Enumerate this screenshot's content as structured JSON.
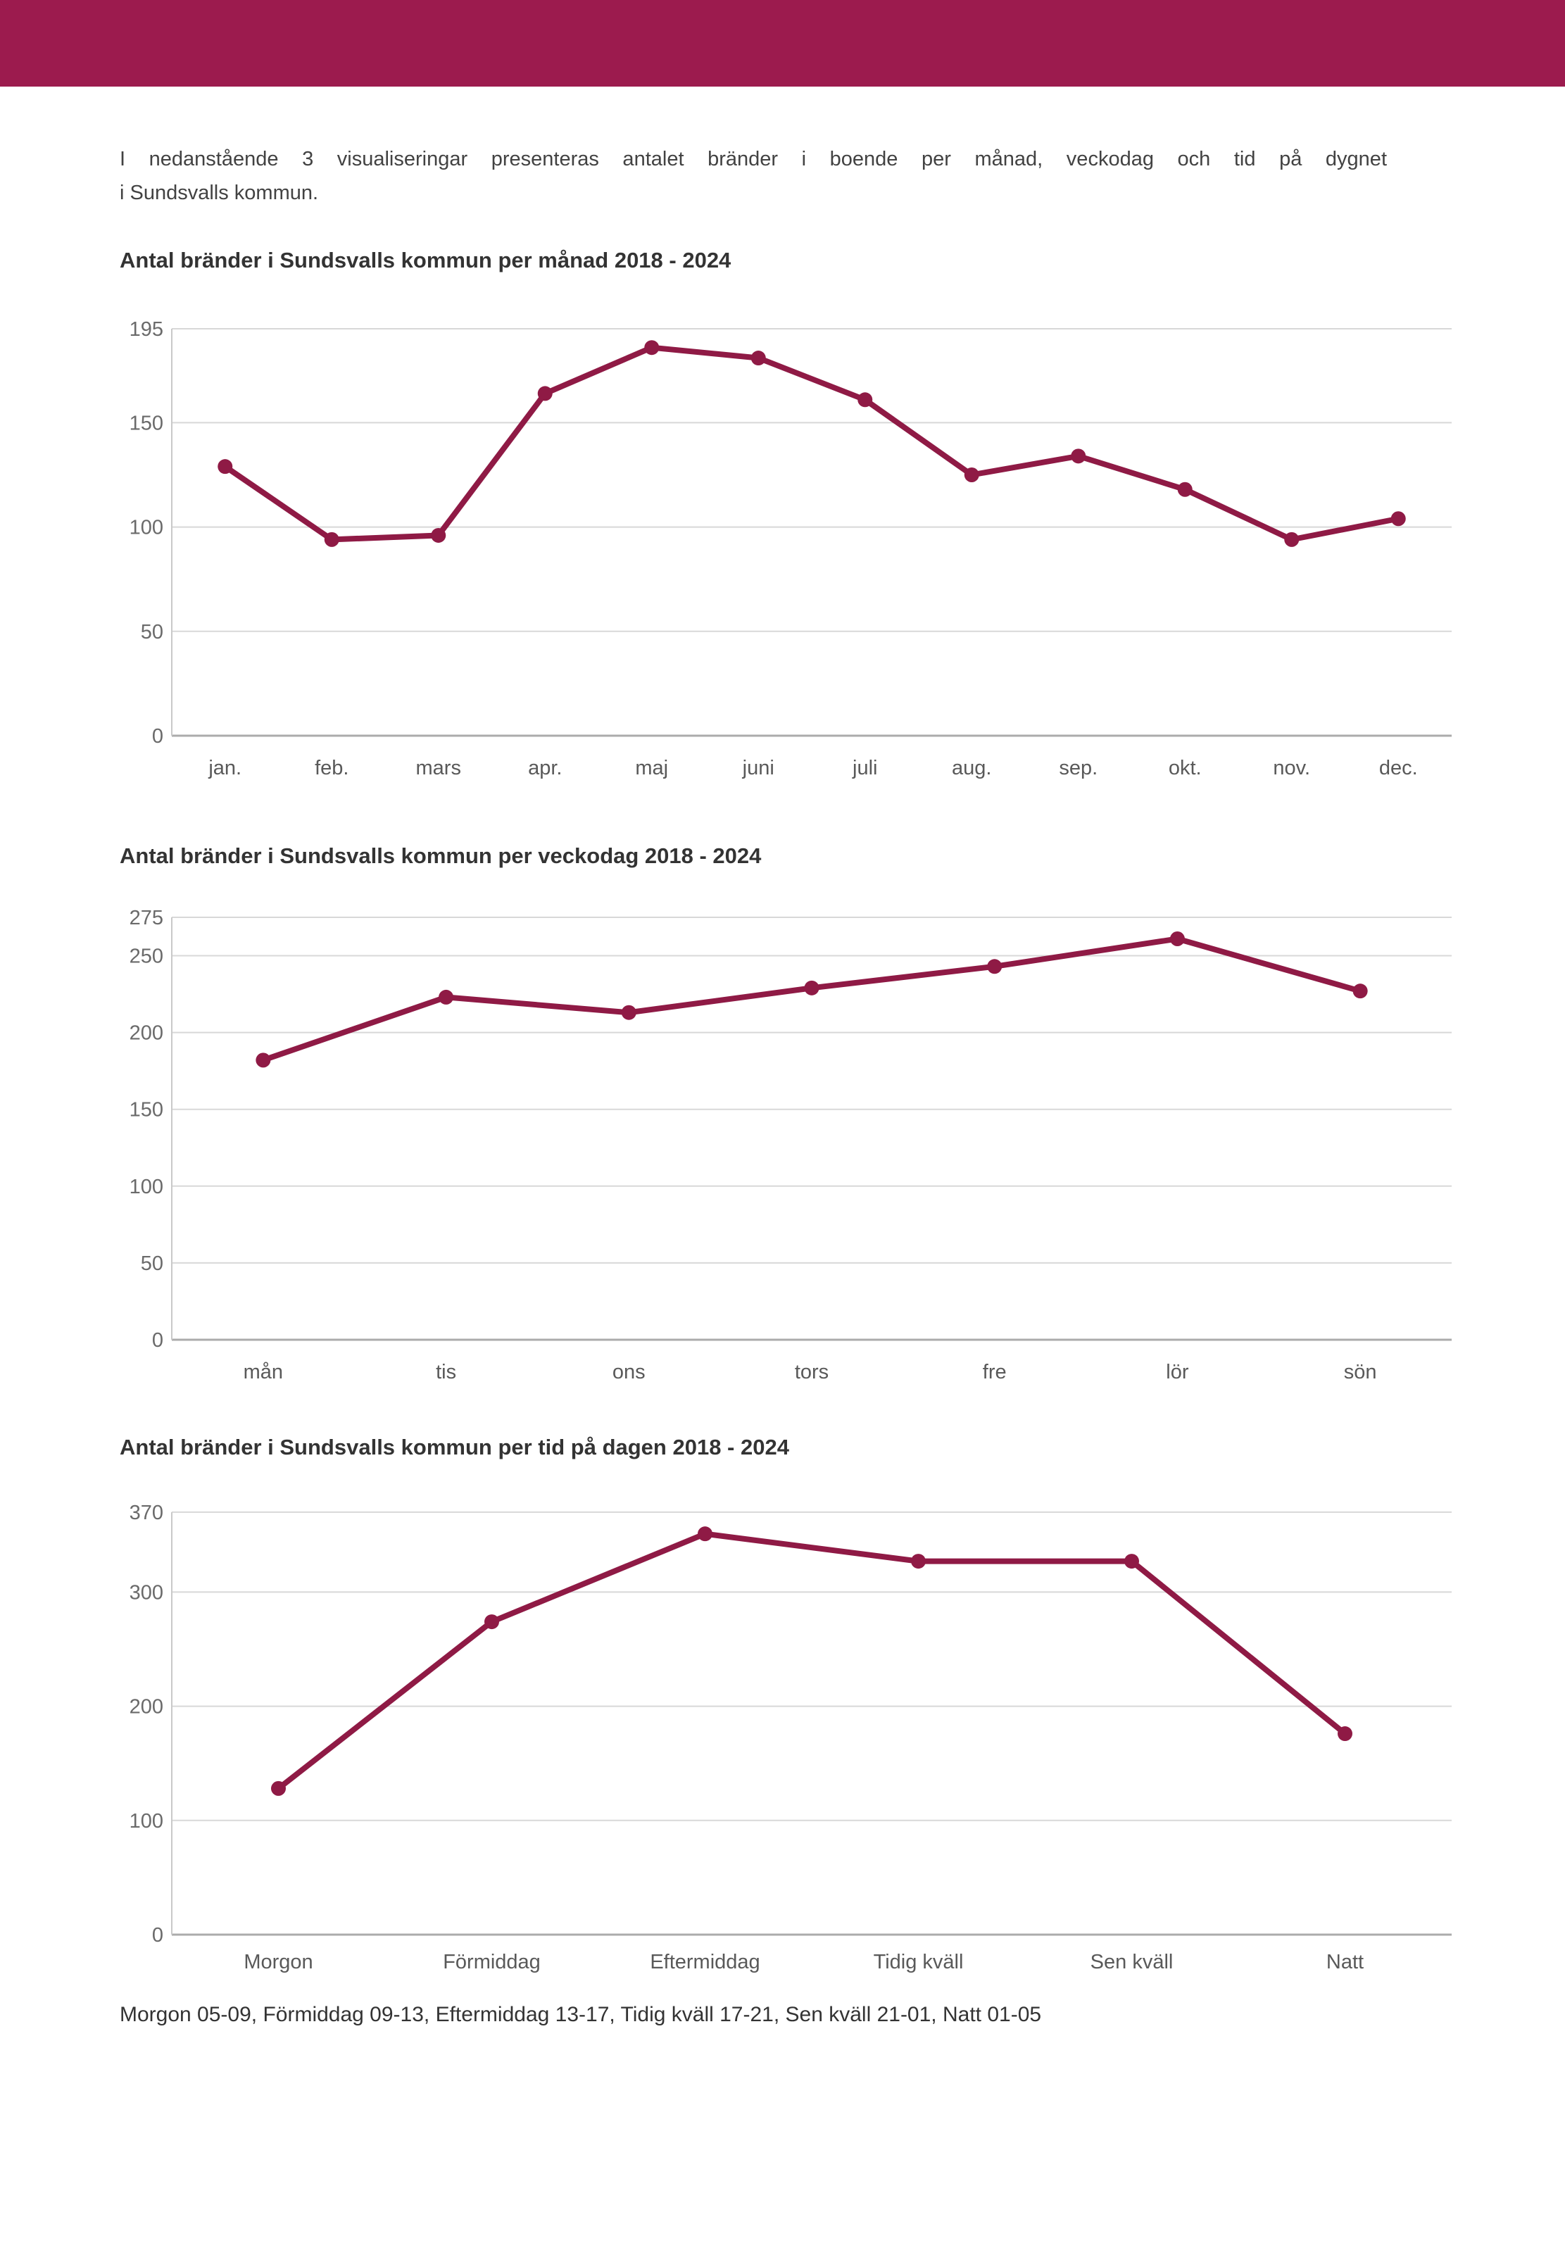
{
  "header": {
    "bar_color": "#9c1b4e"
  },
  "intro": {
    "line1": "I nedanstående 3 visualiseringar presenteras antalet bränder i boende per månad, veckodag och tid på dygnet",
    "line2": "i Sundsvalls kommun."
  },
  "footer": {
    "text": "Morgon 05-09, Förmiddag 09-13, Eftermiddag 13-17, Tidig kväll 17-21, Sen kväll 21-01, Natt 01-05"
  },
  "colors": {
    "line": "#8f1a45",
    "point": "#8f1a45",
    "grid": "#d8d8d8",
    "axis_bottom": "#ababab",
    "axis_side": "#c9c9c9",
    "tick_text": "#6a6a6a",
    "category_text": "#595959",
    "title_text": "#333333",
    "header_bar": "#9c1b4e"
  },
  "chart_data": [
    {
      "type": "line",
      "title": "Antal bränder i Sundsvalls kommun per månad 2018 - 2024",
      "categories": [
        "jan.",
        "feb.",
        "mars",
        "apr.",
        "maj",
        "juni",
        "juli",
        "aug.",
        "sep.",
        "okt.",
        "nov.",
        "dec."
      ],
      "values": [
        129,
        94,
        96,
        164,
        186,
        181,
        161,
        125,
        134,
        118,
        94,
        104
      ],
      "yticks": [
        195,
        150,
        100,
        50,
        0
      ],
      "ylim": [
        0,
        195
      ],
      "xlabel": "",
      "ylabel": "",
      "grid": true,
      "legend": "none"
    },
    {
      "type": "line",
      "title": "Antal bränder i Sundsvalls kommun per veckodag 2018 - 2024",
      "categories": [
        "mån",
        "tis",
        "ons",
        "tors",
        "fre",
        "lör",
        "sön"
      ],
      "values": [
        182,
        223,
        213,
        229,
        243,
        261,
        227
      ],
      "yticks": [
        275,
        250,
        200,
        150,
        100,
        50,
        0
      ],
      "ylim": [
        0,
        275
      ],
      "xlabel": "",
      "ylabel": "",
      "grid": true,
      "legend": "none"
    },
    {
      "type": "line",
      "title": "Antal bränder i Sundsvalls kommun per tid på dagen 2018 - 2024",
      "categories": [
        "Morgon",
        "Förmiddag",
        "Eftermiddag",
        "Tidig kväll",
        "Sen kväll",
        "Natt"
      ],
      "values": [
        128,
        274,
        351,
        327,
        327,
        176
      ],
      "yticks": [
        370,
        300,
        200,
        100,
        0
      ],
      "ylim": [
        0,
        370
      ],
      "xlabel": "",
      "ylabel": "",
      "grid": true,
      "legend": "none"
    }
  ]
}
